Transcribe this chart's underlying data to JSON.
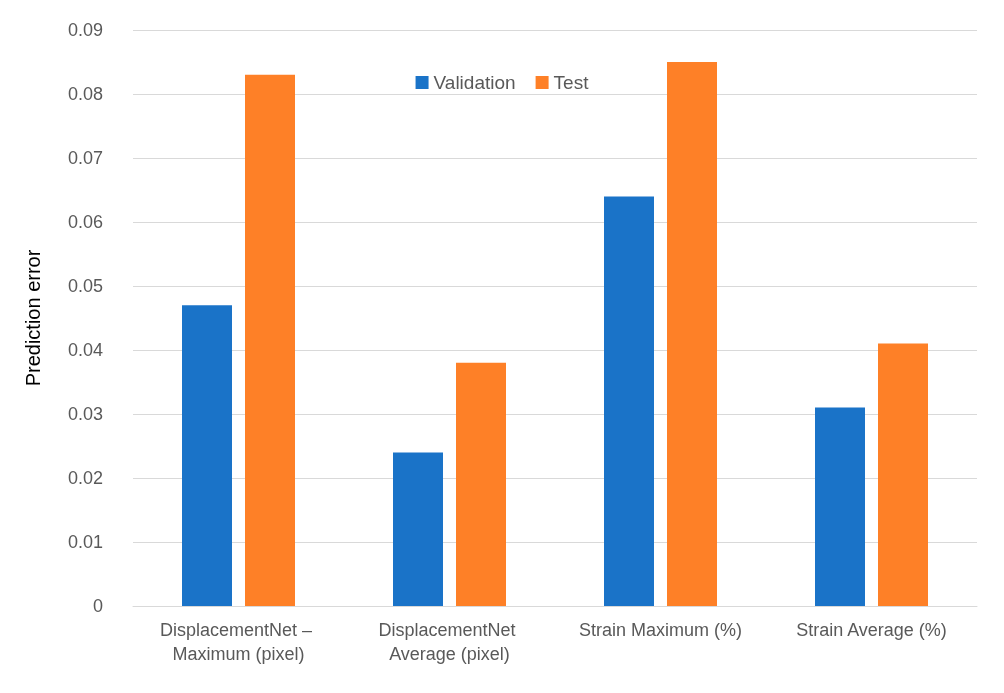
{
  "chart_data": {
    "type": "bar",
    "ylabel": "Prediction error",
    "categories": [
      "DisplacementNet – Maximum (pixel)",
      "DisplacementNet Average (pixel)",
      "Strain Maximum (%)",
      "Strain Average (%)"
    ],
    "series": [
      {
        "name": "Validation",
        "color": "#1a73c8",
        "values": [
          0.047,
          0.024,
          0.064,
          0.031
        ]
      },
      {
        "name": "Test",
        "color": "#fe8027",
        "values": [
          0.083,
          0.038,
          0.085,
          0.041
        ]
      }
    ],
    "ylim": [
      0,
      0.09
    ],
    "yticks": [
      0,
      0.01,
      0.02,
      0.03,
      0.04,
      0.05,
      0.06,
      0.07,
      0.08,
      0.09
    ],
    "grid": "y",
    "legend": "top"
  }
}
